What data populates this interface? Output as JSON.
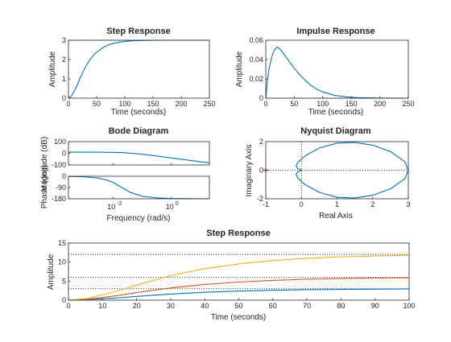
{
  "colors": {
    "blue": "#0072bd",
    "red": "#d95319",
    "yellow": "#edb120",
    "axis": "#262626",
    "marker": "#e00000"
  },
  "chart_data": [
    {
      "id": "step",
      "type": "line",
      "title": "Step Response",
      "xlabel": "Time (seconds)",
      "ylabel": "Amplitude",
      "xlim": [
        0,
        250
      ],
      "ylim": [
        0,
        3
      ],
      "xticks": [
        0,
        50,
        100,
        150,
        200,
        250
      ],
      "yticks": [
        0,
        1,
        2,
        3
      ],
      "steady_state": [
        3
      ],
      "series": [
        {
          "color": "blue",
          "x": [
            0,
            5,
            10,
            15,
            20,
            25,
            30,
            35,
            40,
            45,
            50,
            60,
            70,
            80,
            90,
            100,
            120,
            140,
            160,
            200,
            250
          ],
          "y": [
            0,
            0.1,
            0.35,
            0.64,
            0.99,
            1.32,
            1.61,
            1.86,
            2.07,
            2.24,
            2.38,
            2.6,
            2.75,
            2.84,
            2.9,
            2.94,
            2.98,
            2.99,
            3,
            3,
            3
          ]
        }
      ]
    },
    {
      "id": "impulse",
      "type": "line",
      "title": "Impulse Response",
      "xlabel": "Time (seconds)",
      "ylabel": "Amplitude",
      "xlim": [
        0,
        250
      ],
      "ylim": [
        0,
        0.06
      ],
      "xticks": [
        0,
        50,
        100,
        150,
        200,
        250
      ],
      "yticks": [
        0,
        0.02,
        0.04,
        0.06
      ],
      "series": [
        {
          "color": "blue",
          "x": [
            0,
            3,
            6,
            10,
            15,
            20,
            25,
            30,
            40,
            50,
            60,
            70,
            80,
            90,
            100,
            120,
            140,
            160,
            200,
            250
          ],
          "y": [
            0,
            0.019,
            0.031,
            0.042,
            0.05,
            0.053,
            0.051,
            0.047,
            0.039,
            0.031,
            0.024,
            0.018,
            0.013,
            0.009,
            0.0065,
            0.003,
            0.0014,
            0.0006,
            0.0001,
            0
          ]
        }
      ]
    },
    {
      "id": "bode",
      "type": "line",
      "title": "Bode Diagram",
      "xlabel": "Frequency  (rad/s)",
      "ylabel_mag": "Magnitude (dB)",
      "ylabel_phase": "Phase (deg)",
      "xscale": "log",
      "xlim": [
        0.0003,
        20
      ],
      "xtick_labels": [
        {
          "base": "10",
          "exp": "-2",
          "value": 0.01
        },
        {
          "base": "10",
          "exp": "0",
          "value": 1
        }
      ],
      "mag": {
        "ylim": [
          -100,
          100
        ],
        "yticks": [
          -100,
          0,
          100
        ],
        "x": [
          0.0003,
          0.001,
          0.003,
          0.01,
          0.02,
          0.04,
          0.1,
          0.3,
          1,
          3,
          10,
          20
        ],
        "y": [
          9.5,
          9.5,
          9.4,
          8.3,
          6.0,
          1.0,
          -8,
          -22,
          -40,
          -56,
          -73,
          -82
        ]
      },
      "phase": {
        "ylim": [
          -180,
          0
        ],
        "yticks": [
          -180,
          -90,
          0
        ],
        "x": [
          0.0003,
          0.001,
          0.003,
          0.006,
          0.01,
          0.02,
          0.04,
          0.1,
          0.3,
          1,
          3,
          10,
          20
        ],
        "y": [
          -1,
          -4,
          -14,
          -30,
          -48,
          -90,
          -130,
          -160,
          -172,
          -178,
          -179,
          -180,
          -180
        ]
      }
    },
    {
      "id": "nyquist",
      "type": "line",
      "title": "Nyquist Diagram",
      "xlabel": "Real Axis",
      "ylabel": "Imaginary Axis",
      "xlim": [
        -1,
        3
      ],
      "ylim": [
        -2,
        2
      ],
      "xticks": [
        -1,
        0,
        1,
        2,
        3
      ],
      "yticks": [
        -2,
        0,
        2
      ],
      "critical_point": [
        -1,
        0
      ],
      "curve": {
        "color": "blue",
        "x": [
          3,
          2.9,
          2.5,
          2.0,
          1.5,
          1.0,
          0.5,
          0.1,
          -0.1,
          -0.15,
          -0.1,
          0.0
        ],
        "y": [
          0,
          0.6,
          1.3,
          1.75,
          1.95,
          1.9,
          1.55,
          1.0,
          0.55,
          0.3,
          0.12,
          0.0
        ]
      }
    },
    {
      "id": "step3",
      "type": "line",
      "title": "Step Response",
      "xlabel": "Time (seconds)",
      "ylabel": "Amplitude",
      "xlim": [
        0,
        100
      ],
      "ylim": [
        0,
        15
      ],
      "xticks": [
        0,
        10,
        20,
        30,
        40,
        50,
        60,
        70,
        80,
        90,
        100
      ],
      "yticks": [
        0,
        5,
        10,
        15
      ],
      "steady_state": [
        3,
        6,
        12
      ],
      "series": [
        {
          "color": "blue",
          "final": 3,
          "x": [
            0,
            5,
            10,
            15,
            20,
            30,
            40,
            50,
            60,
            70,
            80,
            90,
            100
          ],
          "y": [
            0,
            0.1,
            0.35,
            0.64,
            0.99,
            1.61,
            2.07,
            2.38,
            2.6,
            2.75,
            2.84,
            2.9,
            2.94
          ]
        },
        {
          "color": "red",
          "final": 6,
          "x": [
            0,
            5,
            10,
            15,
            20,
            30,
            40,
            50,
            60,
            70,
            80,
            90,
            100
          ],
          "y": [
            0,
            0.2,
            0.7,
            1.28,
            1.98,
            3.22,
            4.14,
            4.76,
            5.2,
            5.5,
            5.68,
            5.8,
            5.88
          ]
        },
        {
          "color": "yellow",
          "final": 12,
          "x": [
            0,
            5,
            10,
            15,
            20,
            30,
            40,
            50,
            60,
            70,
            80,
            90,
            100
          ],
          "y": [
            0,
            0.4,
            1.4,
            2.56,
            3.96,
            6.44,
            8.28,
            9.52,
            10.4,
            11.0,
            11.36,
            11.6,
            11.76
          ]
        }
      ]
    }
  ]
}
